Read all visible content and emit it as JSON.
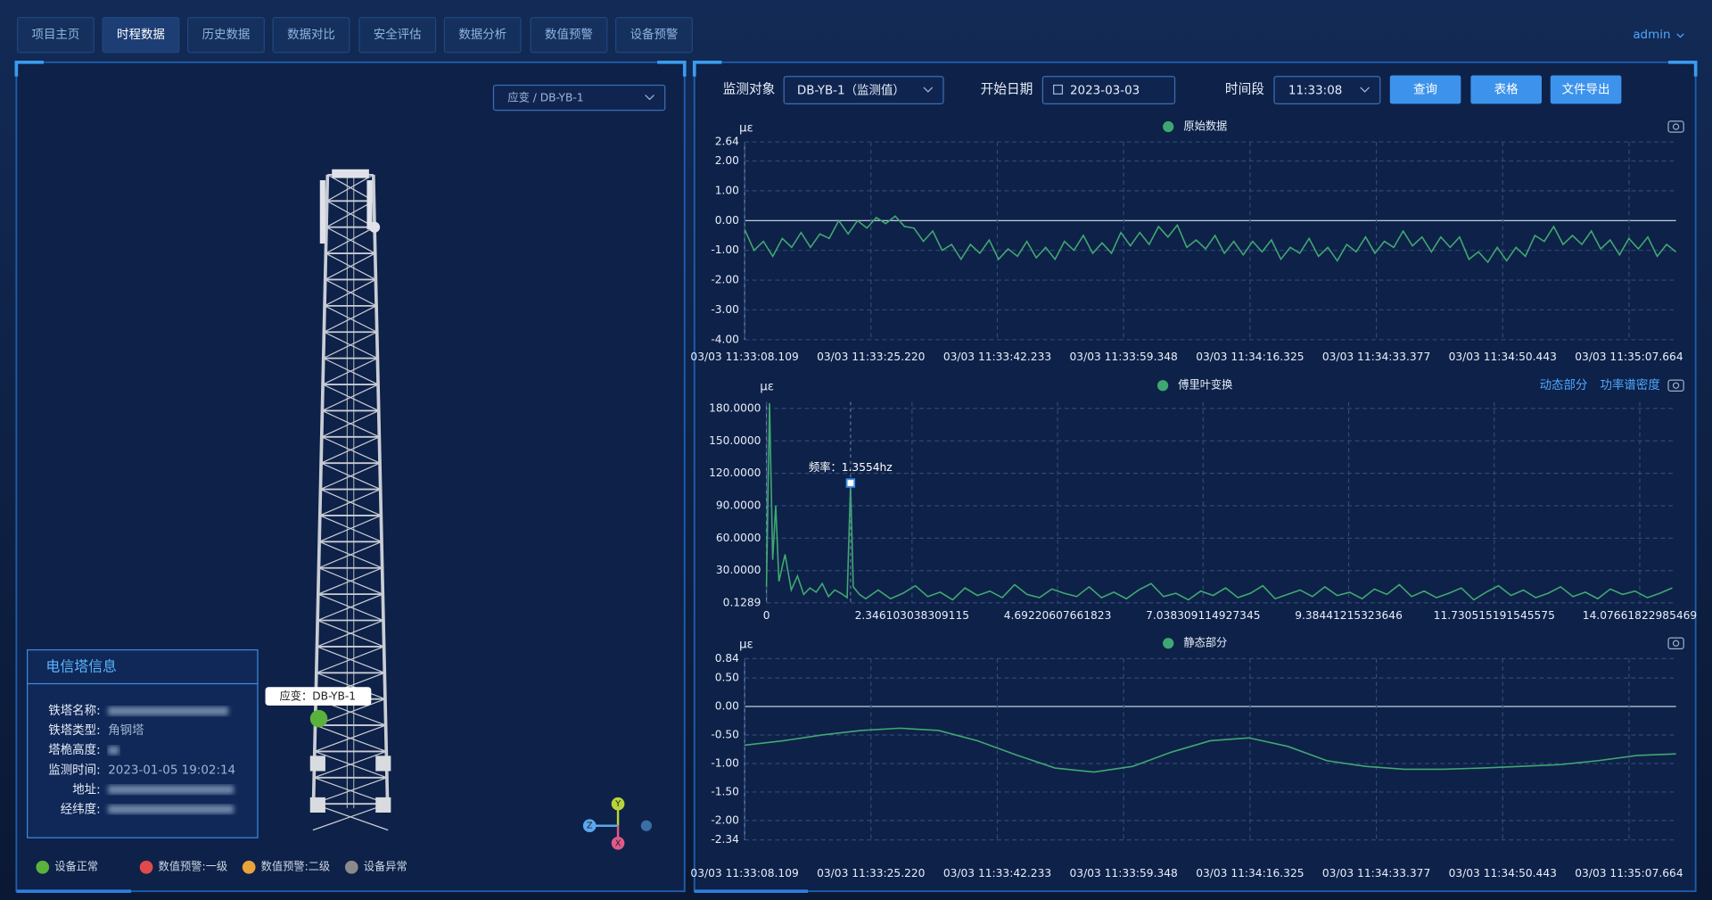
{
  "nav": {
    "tabs": [
      "项目主页",
      "时程数据",
      "历史数据",
      "数据对比",
      "安全评估",
      "数据分析",
      "数值预警",
      "设备预警"
    ],
    "active": 1,
    "user": "admin"
  },
  "left_panel": {
    "selector": "应变 / DB-YB-1",
    "marker_label": "应变：DB-YB-1",
    "info": {
      "title": "电信塔信息",
      "rows": [
        {
          "label": "铁塔名称:"
        },
        {
          "label": "铁塔类型:",
          "value": "角钢塔"
        },
        {
          "label": "塔桅高度:"
        },
        {
          "label": "监测时间:",
          "value": "2023-01-05 19:02:14"
        },
        {
          "label": "地址:"
        },
        {
          "label": "经纬度:"
        }
      ]
    },
    "gizmo": [
      "Y",
      "Z",
      "X"
    ],
    "legend": [
      {
        "name": "设备正常",
        "color": "#5ab13c"
      },
      {
        "name": "数值预警:一级",
        "color": "#e04a4a"
      },
      {
        "name": "数值预警:二级",
        "color": "#e8a33a"
      },
      {
        "name": "设备异常",
        "color": "#8a8a8a"
      }
    ]
  },
  "toolbar": {
    "object_label": "监测对象",
    "object": "DB-YB-1（监测值）",
    "date_label": "开始日期",
    "date": "2023-03-03",
    "time_label": "时间段",
    "time": "11:33:08",
    "buttons": [
      "查询",
      "表格",
      "文件导出"
    ]
  },
  "chart_data": [
    {
      "type": "line",
      "unit": "με",
      "xticks": [
        "03/03 11:33:08.109",
        "03/03 11:33:25.220",
        "03/03 11:33:42.233",
        "03/03 11:33:59.348",
        "03/03 11:34:16.325",
        "03/03 11:34:33.377",
        "03/03 11:34:50.443",
        "03/03 11:35:07.664"
      ],
      "ylim": [
        -4,
        2.64
      ],
      "yticks": [
        2.64,
        {
          "value": 2,
          "label": "2.00"
        },
        {
          "value": 1,
          "label": "1.00"
        },
        {
          "value": 0,
          "label": "0.00"
        },
        {
          "value": -1,
          "label": "-1.00"
        },
        {
          "value": -2,
          "label": "-2.00"
        },
        {
          "value": -3,
          "label": "-3.00"
        },
        {
          "value": -4,
          "label": "-4.00"
        }
      ],
      "grid": true,
      "series": [
        {
          "name": "原始数据",
          "color": "#3fa872",
          "values": [
            -0.3,
            -1.0,
            -0.7,
            -1.2,
            -0.6,
            -0.9,
            -0.4,
            -0.9,
            -0.45,
            -0.6,
            0.0,
            -0.45,
            0.0,
            -0.25,
            0.1,
            -0.1,
            0.15,
            -0.2,
            -0.25,
            -0.7,
            -0.35,
            -1.0,
            -0.8,
            -1.3,
            -0.8,
            -1.1,
            -0.65,
            -1.3,
            -0.95,
            -1.2,
            -0.7,
            -1.25,
            -0.9,
            -1.3,
            -0.7,
            -1.0,
            -0.5,
            -1.1,
            -0.75,
            -1.1,
            -0.4,
            -0.85,
            -0.4,
            -0.8,
            -0.2,
            -0.55,
            -0.15,
            -0.9,
            -0.65,
            -0.95,
            -0.5,
            -1.1,
            -0.7,
            -1.15,
            -0.7,
            -1.05,
            -0.65,
            -1.3,
            -0.9,
            -1.1,
            -0.6,
            -1.2,
            -0.9,
            -1.35,
            -0.8,
            -1.05,
            -0.55,
            -1.1,
            -0.7,
            -0.9,
            -0.35,
            -0.85,
            -0.55,
            -1.05,
            -0.55,
            -0.9,
            -0.55,
            -1.3,
            -1.05,
            -1.4,
            -0.9,
            -1.35,
            -0.9,
            -1.2,
            -0.5,
            -0.7,
            -0.2,
            -0.8,
            -0.5,
            -0.8,
            -0.35,
            -0.95,
            -0.65,
            -1.15,
            -0.6,
            -0.95,
            -0.55,
            -1.2,
            -0.8,
            -1.05
          ]
        }
      ]
    },
    {
      "type": "line",
      "unit": "με",
      "links": [
        "动态部分",
        "功率谱密度"
      ],
      "x": [
        0,
        0.05,
        0.1,
        0.15,
        0.2,
        0.3,
        0.4,
        0.5,
        0.6,
        0.7,
        0.8,
        0.9,
        1,
        1.1,
        1.2,
        1.3,
        1.3554,
        1.4,
        1.5,
        1.6,
        1.8,
        2,
        2.2,
        2.4,
        2.6,
        2.8,
        3,
        3.2,
        3.4,
        3.6,
        3.8,
        4,
        4.2,
        4.4,
        4.6,
        4.8,
        5,
        5.2,
        5.4,
        5.6,
        5.8,
        6,
        6.2,
        6.4,
        6.6,
        6.8,
        7,
        7.2,
        7.4,
        7.6,
        7.8,
        8,
        8.2,
        8.4,
        8.6,
        8.8,
        9,
        9.2,
        9.4,
        9.6,
        9.8,
        10,
        10.2,
        10.4,
        10.6,
        10.8,
        11,
        11.2,
        11.4,
        11.6,
        11.8,
        12,
        12.2,
        12.4,
        12.6,
        12.8,
        13,
        13.2,
        13.4,
        13.6,
        13.8,
        14,
        14.2,
        14.4,
        14.6
      ],
      "xlim": [
        0,
        14.66
      ],
      "xticks": [
        0,
        2.346103038309115,
        4.69220607661823,
        7.038309114927345,
        9.38441215323646,
        11.730515191545575,
        14.07661822985469
      ],
      "ylim": [
        0.1289,
        186
      ],
      "yticks": [
        {
          "value": 180,
          "label": "180.0000"
        },
        {
          "value": 150,
          "label": "150.0000"
        },
        {
          "value": 120,
          "label": "120.0000"
        },
        {
          "value": 90,
          "label": "90.0000"
        },
        {
          "value": 60,
          "label": "60.0000"
        },
        {
          "value": 30,
          "label": "30.0000"
        },
        0.1289
      ],
      "grid": true,
      "annotation": {
        "text": "频率：1.3554hz",
        "x": 1.3554,
        "y": 111
      },
      "series": [
        {
          "name": "傅里叶变换",
          "color": "#3fa872",
          "values": [
            15,
            185,
            40,
            90,
            20,
            45,
            12,
            25,
            8,
            14,
            10,
            18,
            6,
            12,
            9,
            5,
            111,
            15,
            8,
            4,
            12,
            4,
            9,
            16,
            6,
            10,
            3,
            14,
            7,
            11,
            5,
            17,
            8,
            5,
            13,
            9,
            6,
            15,
            5,
            10,
            4,
            12,
            18,
            6,
            9,
            3,
            11,
            7,
            14,
            5,
            9,
            16,
            4,
            8,
            12,
            6,
            15,
            7,
            10,
            4,
            13,
            8,
            17,
            6,
            11,
            5,
            9,
            14,
            3,
            10,
            16,
            7,
            12,
            5,
            9,
            15,
            6,
            10,
            4,
            13,
            8,
            11,
            5,
            9,
            14
          ]
        }
      ]
    },
    {
      "type": "line",
      "unit": "με",
      "xticks": [
        "03/03 11:33:08.109",
        "03/03 11:33:25.220",
        "03/03 11:33:42.233",
        "03/03 11:33:59.348",
        "03/03 11:34:16.325",
        "03/03 11:34:33.377",
        "03/03 11:34:50.443",
        "03/03 11:35:07.664"
      ],
      "ylim": [
        -2.34,
        0.84
      ],
      "yticks": [
        0.84,
        {
          "value": 0.5,
          "label": "0.50"
        },
        {
          "value": 0,
          "label": "0.00"
        },
        {
          "value": -0.5,
          "label": "-0.50"
        },
        {
          "value": -1,
          "label": "-1.00"
        },
        {
          "value": -1.5,
          "label": "-1.50"
        },
        {
          "value": -2,
          "label": "-2.00"
        },
        -2.34
      ],
      "grid": true,
      "series": [
        {
          "name": "静态部分",
          "color": "#3fa872",
          "values": [
            -0.68,
            -0.6,
            -0.5,
            -0.42,
            -0.38,
            -0.42,
            -0.6,
            -0.85,
            -1.08,
            -1.15,
            -1.05,
            -0.8,
            -0.6,
            -0.55,
            -0.7,
            -0.95,
            -1.05,
            -1.1,
            -1.1,
            -1.08,
            -1.05,
            -1.02,
            -0.95,
            -0.86,
            -0.83
          ]
        }
      ]
    }
  ]
}
